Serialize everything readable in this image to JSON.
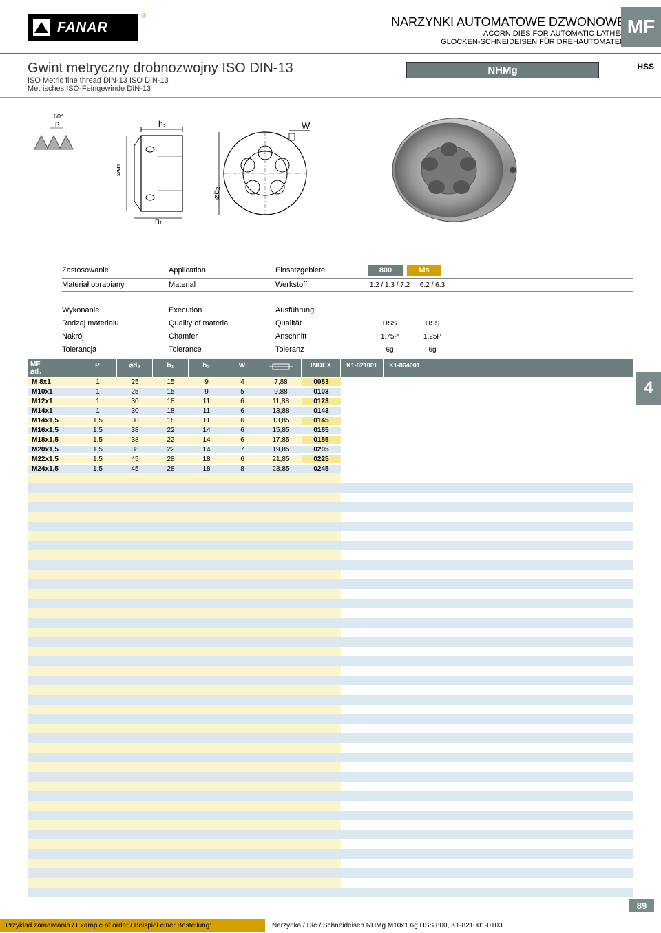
{
  "brand": "FANAR",
  "category_badge": "MF",
  "side_number": "4",
  "page_number": "89",
  "hss_label": "HSS",
  "titles": {
    "pl": "NARZYNKI AUTOMATOWE DZWONOWE",
    "en": "ACORN DIES FOR AUTOMATIC LATHES",
    "de": "GLOCKEN-SCHNEIDEISEN FÜR DREHAUTOMATEN"
  },
  "sub": {
    "main": "Gwint metryczny drobnozwojny ISO DIN-13",
    "en": "ISO Metric fine thread DIN-13 ISO DIN-13",
    "de": "Metrisches ISO-Feingewinde DIN-13"
  },
  "model_badge": "NHMg",
  "spec_labels": {
    "application": [
      "Zastosowanie",
      "Application",
      "Einsatzgebiete"
    ],
    "material": [
      "Materiał obrabiany",
      "Material",
      "Werkstoff"
    ],
    "execution": [
      "Wykonanie",
      "Execution",
      "Ausführung"
    ],
    "quality": [
      "Rodzaj materiału",
      "Quality of material",
      "Qualität"
    ],
    "chamfer": [
      "Nakrój",
      "Chamfer",
      "Anschnitt"
    ],
    "tolerance": [
      "Tolerancja",
      "Tolerance",
      "Toleranz"
    ]
  },
  "app_badges": {
    "b1": "800",
    "b2": "Ms"
  },
  "material_vals": {
    "v1": "1.2 / 1.3 / 7.2",
    "v2": "6.2 / 6.3"
  },
  "quality_vals": {
    "v1": "HSS",
    "v2": "HSS"
  },
  "chamfer_vals": {
    "v1": "1,75P",
    "v2": "1,25P"
  },
  "tolerance_vals": {
    "v1": "6g",
    "v2": "6g"
  },
  "table_headers": {
    "mf": "MF\n⌀d₁",
    "p": "P",
    "d2": "⌀d₂",
    "h1": "h₁",
    "h2": "h₂",
    "w": "W",
    "idx": "INDEX",
    "k1": "K1-821001",
    "k2": "K1-864001"
  },
  "rows": [
    {
      "mf": "M 8x1",
      "p": "1",
      "d2": "25",
      "h1": "15",
      "h2": "9",
      "w": "4",
      "sym": "7,88",
      "idx": "0083"
    },
    {
      "mf": "M10x1",
      "p": "1",
      "d2": "25",
      "h1": "15",
      "h2": "9",
      "w": "5",
      "sym": "9,88",
      "idx": "0103"
    },
    {
      "mf": "M12x1",
      "p": "1",
      "d2": "30",
      "h1": "18",
      "h2": "11",
      "w": "6",
      "sym": "11,88",
      "idx": "0123"
    },
    {
      "mf": "M14x1",
      "p": "1",
      "d2": "30",
      "h1": "18",
      "h2": "11",
      "w": "6",
      "sym": "13,88",
      "idx": "0143"
    },
    {
      "mf": "M14x1,5",
      "p": "1,5",
      "d2": "30",
      "h1": "18",
      "h2": "11",
      "w": "6",
      "sym": "13,85",
      "idx": "0145"
    },
    {
      "mf": "M16x1,5",
      "p": "1,5",
      "d2": "38",
      "h1": "22",
      "h2": "14",
      "w": "6",
      "sym": "15,85",
      "idx": "0165"
    },
    {
      "mf": "M18x1,5",
      "p": "1,5",
      "d2": "38",
      "h1": "22",
      "h2": "14",
      "w": "6",
      "sym": "17,85",
      "idx": "0185"
    },
    {
      "mf": "M20x1,5",
      "p": "1,5",
      "d2": "38",
      "h1": "22",
      "h2": "14",
      "w": "7",
      "sym": "19,85",
      "idx": "0205"
    },
    {
      "mf": "M22x1,5",
      "p": "1,5",
      "d2": "45",
      "h1": "28",
      "h2": "18",
      "w": "6",
      "sym": "21,85",
      "idx": "0225"
    },
    {
      "mf": "M24x1,5",
      "p": "1,5",
      "d2": "45",
      "h1": "28",
      "h2": "18",
      "w": "8",
      "sym": "23,85",
      "idx": "0245"
    }
  ],
  "footer": {
    "label": "Przykład zamawiania / Example of order / Beispiel einer Bestellung:",
    "text": "Narzynka / Die / Schneideisen NHMg M10x1 6g HSS 800, K1-821001-0103"
  },
  "colors": {
    "tab": "#7a8a8a",
    "yellow_row": "#fcf4cc",
    "blue_row": "#dce8f0",
    "idx_yellow": "#f5e896",
    "gold": "#d4a000"
  }
}
